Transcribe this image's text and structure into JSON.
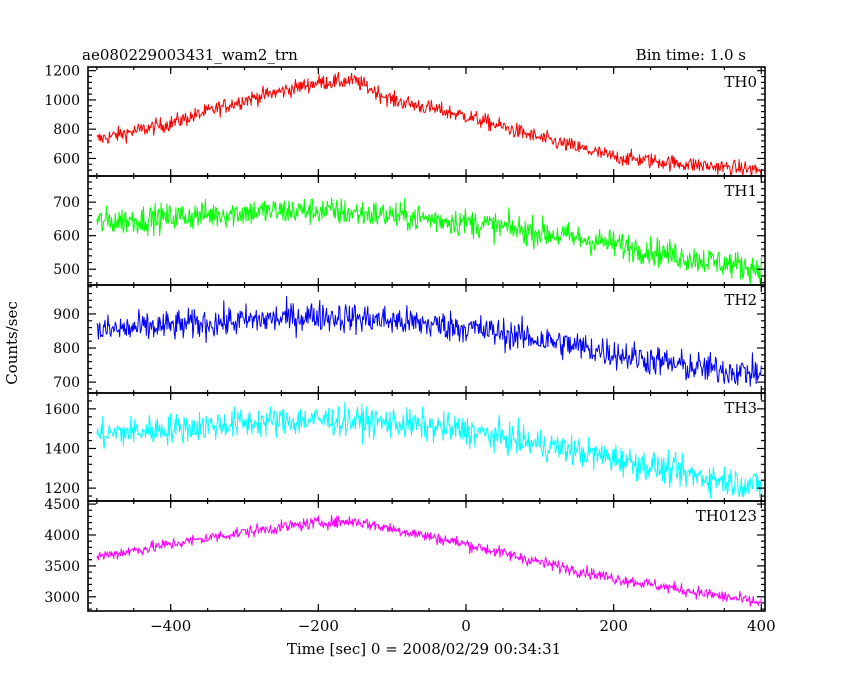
{
  "header": {
    "title": "ae080229003431_wam2_trn",
    "bin_time": "Bin time: 1.0 s"
  },
  "axes": {
    "ylabel": "Counts/sec",
    "xlabel": "Time [sec] 0 = 2008/02/29 00:34:31"
  },
  "chart_data": {
    "type": "line",
    "x_range": [
      -512,
      405
    ],
    "x_ticks": [
      -400,
      -200,
      0,
      200,
      400
    ],
    "x_tick_labels": [
      "−400",
      "−200",
      "0",
      "200",
      "400"
    ],
    "x_step": 1,
    "panels": [
      {
        "name": "TH0",
        "color": "#ff0000",
        "ylim": [
          480,
          1225
        ],
        "yticks": [
          600,
          800,
          1000,
          1200
        ],
        "trend": [
          [
            -500,
            730
          ],
          [
            -400,
            840
          ],
          [
            -300,
            1000
          ],
          [
            -200,
            1120
          ],
          [
            -150,
            1130
          ],
          [
            -100,
            1000
          ],
          [
            0,
            890
          ],
          [
            100,
            740
          ],
          [
            200,
            610
          ],
          [
            300,
            560
          ],
          [
            400,
            520
          ]
        ],
        "noise": 38
      },
      {
        "name": "TH1",
        "color": "#00ff00",
        "ylim": [
          453,
          778
        ],
        "yticks": [
          500,
          600,
          700
        ],
        "trend": [
          [
            -500,
            640
          ],
          [
            -300,
            670
          ],
          [
            -200,
            675
          ],
          [
            -100,
            660
          ],
          [
            0,
            640
          ],
          [
            100,
            610
          ],
          [
            200,
            575
          ],
          [
            300,
            535
          ],
          [
            400,
            500
          ]
        ],
        "noise": 30
      },
      {
        "name": "TH2",
        "color": "#0000ff",
        "ylim": [
          668,
          985
        ],
        "yticks": [
          700,
          800,
          900
        ],
        "trend": [
          [
            -500,
            850
          ],
          [
            -300,
            880
          ],
          [
            -200,
            895
          ],
          [
            -100,
            880
          ],
          [
            0,
            860
          ],
          [
            100,
            825
          ],
          [
            200,
            785
          ],
          [
            300,
            745
          ],
          [
            400,
            725
          ]
        ],
        "noise": 32
      },
      {
        "name": "TH3",
        "color": "#00ffff",
        "ylim": [
          1135,
          1680
        ],
        "yticks": [
          1200,
          1400,
          1600
        ],
        "trend": [
          [
            -500,
            1470
          ],
          [
            -300,
            1530
          ],
          [
            -200,
            1545
          ],
          [
            -100,
            1530
          ],
          [
            0,
            1490
          ],
          [
            100,
            1420
          ],
          [
            200,
            1350
          ],
          [
            300,
            1270
          ],
          [
            400,
            1210
          ]
        ],
        "noise": 55
      },
      {
        "name": "TH0123",
        "color": "#ff00ff",
        "ylim": [
          2770,
          4550
        ],
        "yticks": [
          3000,
          3500,
          4000,
          4500
        ],
        "trend": [
          [
            -500,
            3650
          ],
          [
            -400,
            3850
          ],
          [
            -300,
            4050
          ],
          [
            -200,
            4200
          ],
          [
            -150,
            4220
          ],
          [
            -100,
            4100
          ],
          [
            0,
            3850
          ],
          [
            100,
            3560
          ],
          [
            200,
            3300
          ],
          [
            300,
            3100
          ],
          [
            400,
            2900
          ]
        ],
        "noise": 70
      }
    ]
  }
}
